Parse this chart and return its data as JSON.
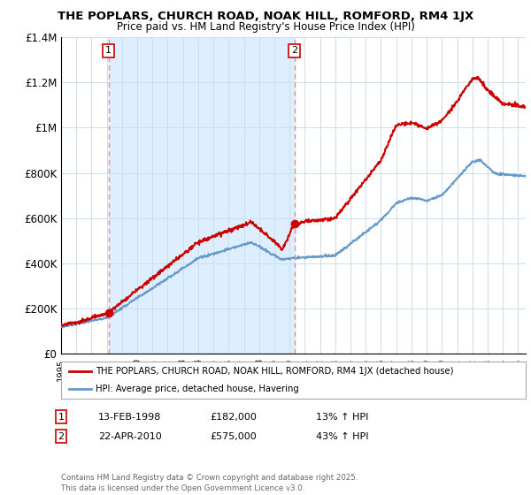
{
  "title": "THE POPLARS, CHURCH ROAD, NOAK HILL, ROMFORD, RM4 1JX",
  "subtitle": "Price paid vs. HM Land Registry's House Price Index (HPI)",
  "legend_line1": "THE POPLARS, CHURCH ROAD, NOAK HILL, ROMFORD, RM4 1JX (detached house)",
  "legend_line2": "HPI: Average price, detached house, Havering",
  "footnote": "Contains HM Land Registry data © Crown copyright and database right 2025.\nThis data is licensed under the Open Government Licence v3.0.",
  "table_rows": [
    {
      "num": "1",
      "date": "13-FEB-1998",
      "price": "£182,000",
      "hpi": "13% ↑ HPI"
    },
    {
      "num": "2",
      "date": "22-APR-2010",
      "price": "£575,000",
      "hpi": "43% ↑ HPI"
    }
  ],
  "red_color": "#cc0000",
  "blue_color": "#6699cc",
  "shade_color": "#ddeeff",
  "bg_color": "#ffffff",
  "grid_color": "#ccddee",
  "dashed_color": "#ee8888",
  "ylim": [
    0,
    1400000
  ],
  "yticks": [
    0,
    200000,
    400000,
    600000,
    800000,
    1000000,
    1200000,
    1400000
  ],
  "ytick_labels": [
    "£0",
    "£200K",
    "£400K",
    "£600K",
    "£800K",
    "£1M",
    "£1.2M",
    "£1.4M"
  ],
  "sale1_x": 1998.11,
  "sale1_y": 182000,
  "sale2_x": 2010.31,
  "sale2_y": 575000,
  "xmin": 1995.0,
  "xmax": 2025.5
}
